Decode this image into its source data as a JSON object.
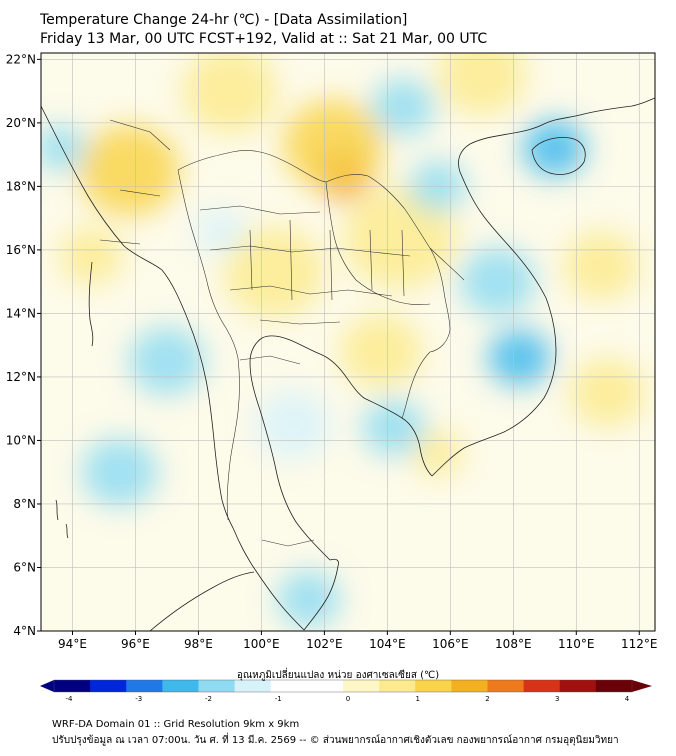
{
  "title": {
    "line1": "Temperature Change 24-hr (℃) - [Data Assimilation]",
    "line2": "Friday 13 Mar, 00 UTC FCST+192, Valid at :: Sat 21 Mar, 00 UTC"
  },
  "map": {
    "lat_labels": [
      "22°N",
      "20°N",
      "18°N",
      "16°N",
      "14°N",
      "12°N",
      "10°N",
      "8°N",
      "6°N",
      "4°N"
    ],
    "lat_values": [
      22,
      20,
      18,
      16,
      14,
      12,
      10,
      8,
      6,
      4
    ],
    "lon_labels": [
      "94°E",
      "96°E",
      "98°E",
      "100°E",
      "102°E",
      "104°E",
      "106°E",
      "108°E",
      "110°E",
      "112°E"
    ],
    "lon_values": [
      94,
      96,
      98,
      100,
      102,
      104,
      106,
      108,
      110,
      112
    ],
    "lon_range": [
      93,
      112.5
    ],
    "lat_range": [
      4,
      22.2
    ],
    "field_blobs": [
      {
        "lon": 102.6,
        "lat": 18.4,
        "value": 2.6,
        "r": 0.9
      },
      {
        "lon": 102.3,
        "lat": 19.3,
        "value": 1.2,
        "r": 1.6
      },
      {
        "lon": 95.8,
        "lat": 18.5,
        "value": 1.1,
        "r": 1.6
      },
      {
        "lon": 99.0,
        "lat": 21.0,
        "value": 0.9,
        "r": 1.5
      },
      {
        "lon": 104.4,
        "lat": 16.4,
        "value": 0.9,
        "r": 1.8
      },
      {
        "lon": 100.4,
        "lat": 15.3,
        "value": 0.7,
        "r": 1.6
      },
      {
        "lon": 107.0,
        "lat": 21.5,
        "value": 0.8,
        "r": 1.4
      },
      {
        "lon": 103.8,
        "lat": 12.8,
        "value": 0.6,
        "r": 1.3
      },
      {
        "lon": 105.6,
        "lat": 9.6,
        "value": 0.6,
        "r": 0.8
      },
      {
        "lon": 94.6,
        "lat": 15.8,
        "value": 0.6,
        "r": 1.0
      },
      {
        "lon": 110.8,
        "lat": 15.5,
        "value": 0.6,
        "r": 1.2
      },
      {
        "lon": 111.0,
        "lat": 11.5,
        "value": 0.5,
        "r": 1.2
      },
      {
        "lon": 109.3,
        "lat": 19.2,
        "value": -1.3,
        "r": 1.0
      },
      {
        "lon": 108.2,
        "lat": 12.6,
        "value": -1.4,
        "r": 1.0
      },
      {
        "lon": 93.6,
        "lat": 19.2,
        "value": -1.0,
        "r": 0.8
      },
      {
        "lon": 101.5,
        "lat": 5.0,
        "value": -1.0,
        "r": 1.0
      },
      {
        "lon": 107.5,
        "lat": 15.0,
        "value": -0.9,
        "r": 1.2
      },
      {
        "lon": 97.0,
        "lat": 12.5,
        "value": -0.8,
        "r": 1.2
      },
      {
        "lon": 95.5,
        "lat": 9.0,
        "value": -0.7,
        "r": 1.2
      },
      {
        "lon": 104.5,
        "lat": 20.5,
        "value": -0.8,
        "r": 1.0
      },
      {
        "lon": 104.2,
        "lat": 10.4,
        "value": -0.6,
        "r": 1.0
      },
      {
        "lon": 105.6,
        "lat": 18.0,
        "value": -0.6,
        "r": 0.9
      },
      {
        "lon": 98.7,
        "lat": 16.6,
        "value": -0.5,
        "r": 0.8
      },
      {
        "lon": 101.0,
        "lat": 10.5,
        "value": -0.5,
        "r": 1.2
      }
    ]
  },
  "colorbar": {
    "label": "อุณหภูมิเปลี่ยนแปลง หน่วย องศาเซลเซียส (℃)",
    "ticks": [
      "-4",
      "-3",
      "-2",
      "-1",
      "0",
      "1",
      "2",
      "3",
      "4"
    ],
    "tick_values": [
      -4,
      -3,
      -2,
      -1,
      0,
      1,
      2,
      3,
      4
    ],
    "colors": [
      "#000080",
      "#0026d9",
      "#1f7ae8",
      "#3fb8ee",
      "#8fdcf2",
      "#d8f2fa",
      "#ffffff",
      "#ffffff",
      "#fdf7c8",
      "#fbeb8e",
      "#f8d44a",
      "#f5b021",
      "#ee7a1c",
      "#d73316",
      "#a0100e",
      "#6a0008"
    ]
  },
  "footer": {
    "line1": "WRF-DA Domain 01 :: Grid Resolution 9km x 9km",
    "line2": "ปรับปรุงข้อมูล ณ เวลา 07:00น. วัน ศ. ที่ 13 มี.ค. 2569 -- © ส่วนพยากรณ์อากาศเชิงตัวเลข กองพยากรณ์อากาศ กรมอุตุนิยมวิทยา"
  }
}
